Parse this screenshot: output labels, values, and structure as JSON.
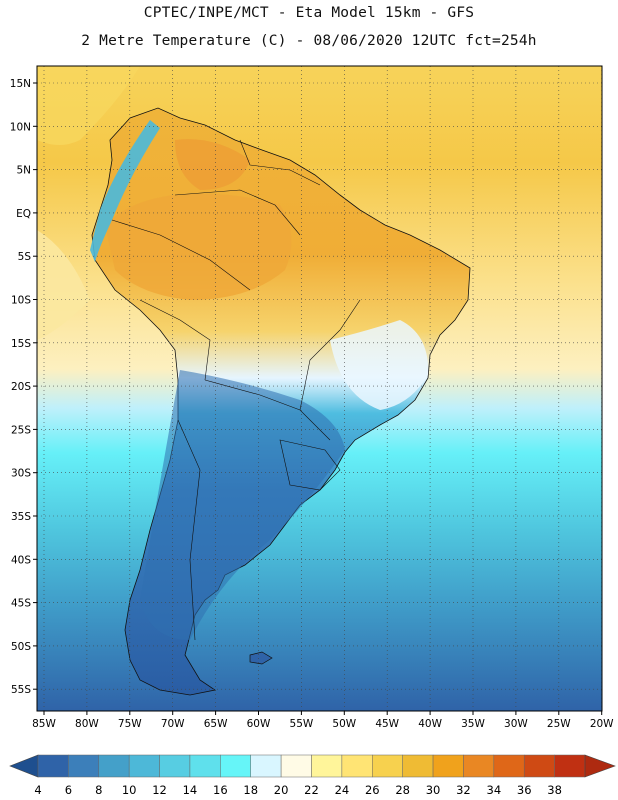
{
  "header": {
    "title_line1": "CPTEC/INPE/MCT -  Eta Model 15km - GFS",
    "title_line2": "2 Metre Temperature (C) - 08/06/2020 12UTC fct=254h"
  },
  "map": {
    "lat_labels": [
      "15N",
      "10N",
      "5N",
      "EQ",
      "5S",
      "10S",
      "15S",
      "20S",
      "25S",
      "30S",
      "35S",
      "40S",
      "45S",
      "50S",
      "55S"
    ],
    "lon_labels": [
      "85W",
      "80W",
      "75W",
      "70W",
      "65W",
      "60W",
      "55W",
      "50W",
      "45W",
      "40W",
      "35W",
      "30W",
      "25W",
      "20W"
    ]
  },
  "colorbar": {
    "values": [
      "4",
      "6",
      "8",
      "10",
      "12",
      "14",
      "16",
      "18",
      "20",
      "22",
      "24",
      "26",
      "28",
      "30",
      "32",
      "34",
      "36",
      "38"
    ],
    "colors": [
      "#2f63a8",
      "#3c7fba",
      "#44a0c9",
      "#4db8d8",
      "#57cde2",
      "#5fe0ec",
      "#66f5f8",
      "#d9f6ff",
      "#fffbe6",
      "#fff59a",
      "#ffe474",
      "#f7d14e",
      "#efbb34",
      "#f0a21c",
      "#e98723",
      "#df6718",
      "#cf4a14",
      "#c03012"
    ],
    "low_end_color": "#1e4f8f",
    "high_end_color": "#ae2a10"
  }
}
